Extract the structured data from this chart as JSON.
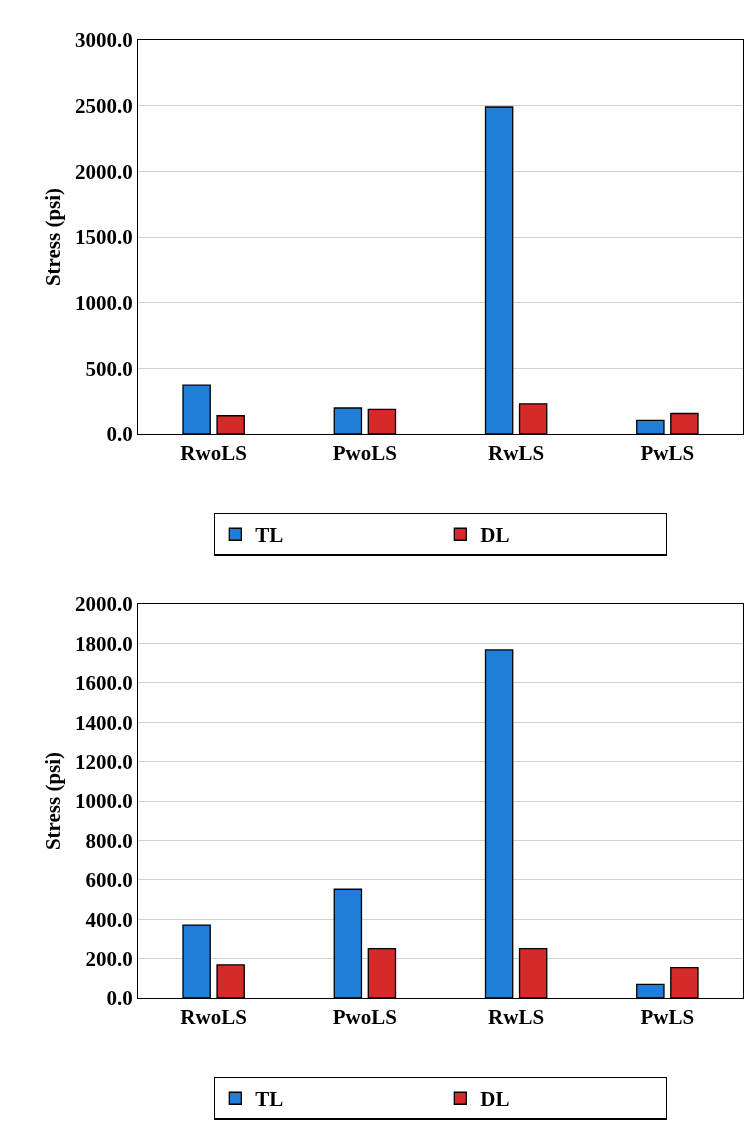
{
  "chart_data": [
    {
      "type": "bar",
      "ylabel": "Stress (psi)",
      "categories": [
        "RwoLS",
        "PwoLS",
        "RwLS",
        "PwLS"
      ],
      "series": [
        {
          "name": "TL",
          "color": "#1f7fd8",
          "values": [
            372,
            198,
            2490,
            104
          ]
        },
        {
          "name": "DL",
          "color": "#d42a2a",
          "values": [
            139,
            188,
            229,
            156
          ]
        }
      ],
      "ylim": [
        0,
        3000
      ],
      "yticks": [
        {
          "value": 0,
          "label": "0.0"
        },
        {
          "value": 500,
          "label": "500.0"
        },
        {
          "value": 1000,
          "label": "1000.0"
        },
        {
          "value": 1500,
          "label": "1500.0"
        },
        {
          "value": 2000,
          "label": "2000.0"
        },
        {
          "value": 2500,
          "label": "2500.0"
        },
        {
          "value": 3000,
          "label": "3000.0"
        }
      ],
      "grid": "y",
      "legend": "bottom"
    },
    {
      "type": "bar",
      "ylabel": "Stress (psi)",
      "categories": [
        "RwoLS",
        "PwoLS",
        "RwLS",
        "PwLS"
      ],
      "series": [
        {
          "name": "TL",
          "color": "#1f7fd8",
          "values": [
            370,
            552,
            1767,
            69
          ]
        },
        {
          "name": "DL",
          "color": "#d42a2a",
          "values": [
            168,
            251,
            251,
            154
          ]
        }
      ],
      "ylim": [
        0,
        2000
      ],
      "yticks": [
        {
          "value": 0,
          "label": "0.0"
        },
        {
          "value": 200,
          "label": "200.0"
        },
        {
          "value": 400,
          "label": "400.0"
        },
        {
          "value": 600,
          "label": "600.0"
        },
        {
          "value": 800,
          "label": "800.0"
        },
        {
          "value": 1000,
          "label": "1000.0"
        },
        {
          "value": 1200,
          "label": "1200.0"
        },
        {
          "value": 1400,
          "label": "1400.0"
        },
        {
          "value": 1600,
          "label": "1600.0"
        },
        {
          "value": 1800,
          "label": "1800.0"
        },
        {
          "value": 2000,
          "label": "2000.0"
        }
      ],
      "grid": "y",
      "legend": "bottom"
    }
  ]
}
